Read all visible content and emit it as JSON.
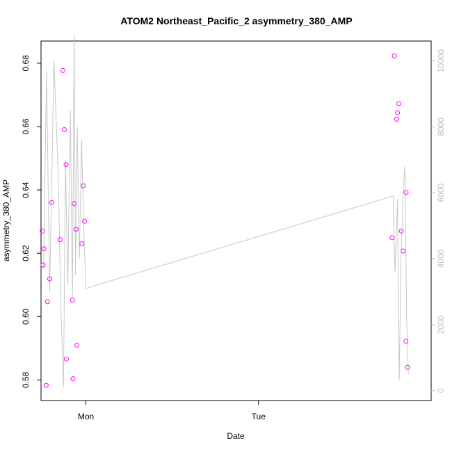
{
  "chart_data": {
    "type": "scatter",
    "title": "ATOM2 Northeast_Pacific_2 asymmetry_380_AMP",
    "xlabel": "Date",
    "ylabel": "asymmetry_380_AMP",
    "x_ticks": [
      "Mon",
      "Tue"
    ],
    "y_ticks": [
      0.58,
      0.6,
      0.62,
      0.64,
      0.66,
      0.68
    ],
    "y_tick_labels": [
      "0.58",
      "0.60",
      "0.62",
      "0.64",
      "0.66",
      "0.68"
    ],
    "y2_ticks": [
      0,
      2000,
      4000,
      6000,
      8000,
      10000
    ],
    "y2_tick_labels": [
      "0",
      "2000",
      "4000",
      "6000",
      "8000",
      "10000"
    ],
    "xlim": [
      -0.26,
      2.0
    ],
    "ylim": [
      0.5735,
      0.687
    ],
    "y2lim": [
      -300,
      10600
    ],
    "grid": false,
    "colors": {
      "points": "#ff00ff",
      "line": "#c8c8c8",
      "axis": "#000000",
      "right_axis": "#c0c0c0"
    },
    "series": [
      {
        "type": "scatter",
        "x": [
          -0.253,
          -0.248,
          -0.243,
          -0.23,
          -0.223,
          -0.21,
          -0.198,
          -0.148,
          -0.133,
          -0.125,
          -0.115,
          -0.113,
          -0.078,
          -0.075,
          -0.068,
          -0.057,
          -0.052,
          -0.023,
          -0.015,
          -0.008,
          1.774,
          1.787,
          1.8,
          1.805,
          1.812,
          1.827,
          1.838,
          1.854,
          1.855,
          1.863
        ],
        "y": [
          0.627,
          0.6163,
          0.6214,
          0.5783,
          0.6047,
          0.6119,
          0.636,
          0.6243,
          0.6777,
          0.659,
          0.648,
          0.5866,
          0.6052,
          0.5804,
          0.6357,
          0.6276,
          0.591,
          0.623,
          0.6413,
          0.6301,
          0.6249,
          0.6823,
          0.6623,
          0.6643,
          0.6672,
          0.627,
          0.6207,
          0.5922,
          0.6392,
          0.584
        ]
      },
      {
        "type": "line",
        "axis": "right",
        "x": [
          -0.245,
          -0.228,
          -0.21,
          -0.185,
          -0.16,
          -0.145,
          -0.13,
          -0.118,
          -0.105,
          -0.09,
          -0.078,
          -0.068,
          -0.06,
          -0.05,
          -0.038,
          -0.025,
          -0.012,
          0.0,
          1.78,
          1.79,
          1.805,
          1.815,
          1.825,
          1.838,
          1.848,
          1.858,
          1.868
        ],
        "y": [
          3700,
          9700,
          3000,
          10000,
          6500,
          2500,
          100,
          7000,
          3200,
          8500,
          2800,
          10800,
          3500,
          8000,
          4000,
          7600,
          4800,
          3100,
          5900,
          3600,
          5800,
          300,
          4000,
          6000,
          6800,
          2200,
          500
        ]
      }
    ]
  }
}
